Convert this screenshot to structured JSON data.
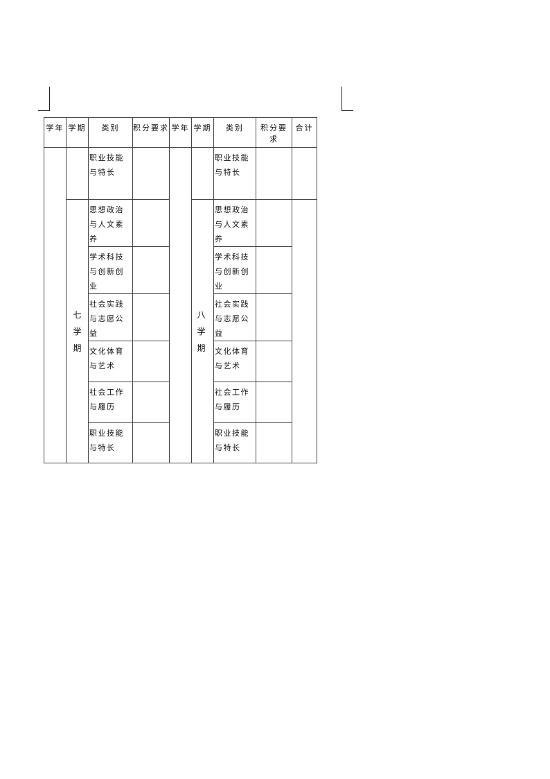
{
  "table": {
    "headers": [
      "学年",
      "学期",
      "类别",
      "积分要求",
      "学年",
      "学期",
      "类别",
      "积分要求",
      "合计"
    ],
    "left": {
      "semester": "七学期",
      "categories": [
        "职业技能与特长",
        "思想政治与人文素养",
        "学术科技与创新创业",
        "社会实践与志愿公益",
        "文化体育与艺术",
        "社会工作与履历",
        "职业技能与特长"
      ]
    },
    "right": {
      "semester": "八学期",
      "categories": [
        "职业技能与特长",
        "思想政治与人文素养",
        "学术科技与创新创业",
        "社会实践与志愿公益",
        "文化体育与艺术",
        "社会工作与履历",
        "职业技能与特长"
      ]
    }
  }
}
